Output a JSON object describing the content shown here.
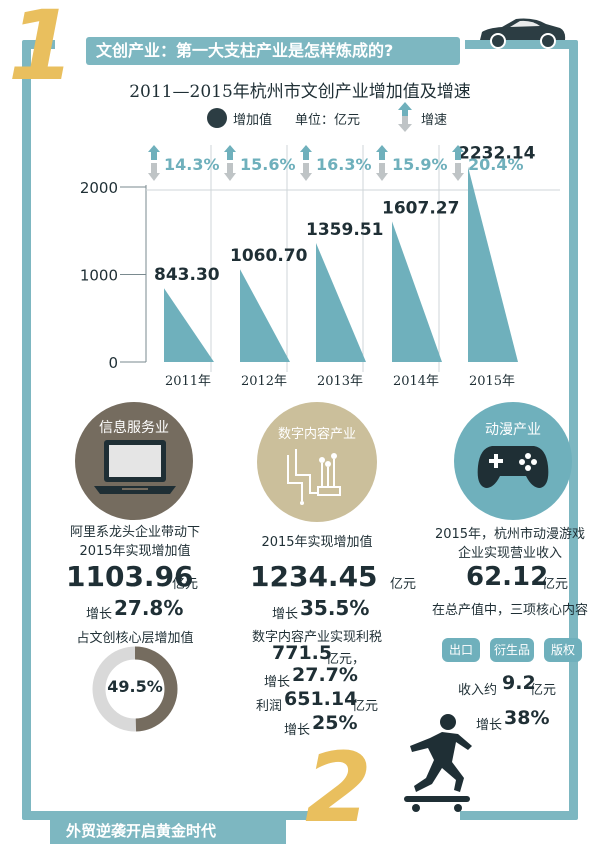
{
  "colors": {
    "teal": "#6fb0bc",
    "frame": "#7db7c1",
    "gold": "#e9bf5e",
    "dark": "#1f2f35",
    "brown": "#756c5f",
    "beige": "#cbbf9b"
  },
  "section1": {
    "number": "1",
    "title": "文创产业：第一大支柱产业是怎样炼成的?"
  },
  "section2": {
    "number": "2",
    "title": "外贸逆袭开启黄金时代"
  },
  "chart_data": {
    "type": "bar",
    "title": "2011—2015年杭州市文创产业增加值及增速",
    "legend": {
      "value_label": "增加值",
      "unit_label": "单位：亿元",
      "growth_label": "增速"
    },
    "categories": [
      "2011年",
      "2012年",
      "2013年",
      "2014年",
      "2015年"
    ],
    "series": [
      {
        "name": "增加值",
        "values": [
          843.3,
          1060.7,
          1359.51,
          1607.27,
          2232.14
        ],
        "value_labels": [
          "843.30",
          "1060.70",
          "1359.51",
          "1607.27",
          "2232.14"
        ]
      },
      {
        "name": "增速",
        "values": [
          "14.3%",
          "15.6%",
          "16.3%",
          "15.9%",
          "20.4%"
        ]
      }
    ],
    "yticks": [
      "0",
      "1000",
      "2000"
    ],
    "ylim": [
      0,
      2000
    ]
  },
  "info": {
    "title": "信息服务业",
    "desc1": "阿里系龙头企业带动下",
    "desc2": "2015年实现增加值",
    "value": "1103.96",
    "unit": "亿元",
    "growth_prefix": "增长",
    "growth": "27.8%",
    "share_label": "占文创核心层增加值",
    "share": "49.5%",
    "share_value": 49.5
  },
  "digital": {
    "title": "数字内容产业",
    "desc1": "2015年实现增加值",
    "value": "1234.45",
    "unit": "亿元",
    "growth_prefix": "增长",
    "growth": "35.5%",
    "tax_label": "数字内容产业实现利税",
    "tax_value": "771.5",
    "tax_unit": "亿元，",
    "tax_growth_prefix": "增长",
    "tax_growth": "27.7%",
    "profit_prefix": "利润",
    "profit_value": "651.14",
    "profit_unit": "亿元",
    "profit_growth_prefix": "增长",
    "profit_growth": "25%"
  },
  "animation": {
    "title": "动漫产业",
    "desc1": "2015年，杭州市动漫游戏",
    "desc2": "企业实现营业收入",
    "value": "62.12",
    "unit": "亿元",
    "core_label": "在总产值中，三项核心内容",
    "pills": [
      "出口",
      "衍生品",
      "版权"
    ],
    "income_prefix": "收入约",
    "income_value": "9.2",
    "income_unit": "亿元",
    "growth_prefix": "增长",
    "growth": "38%"
  }
}
